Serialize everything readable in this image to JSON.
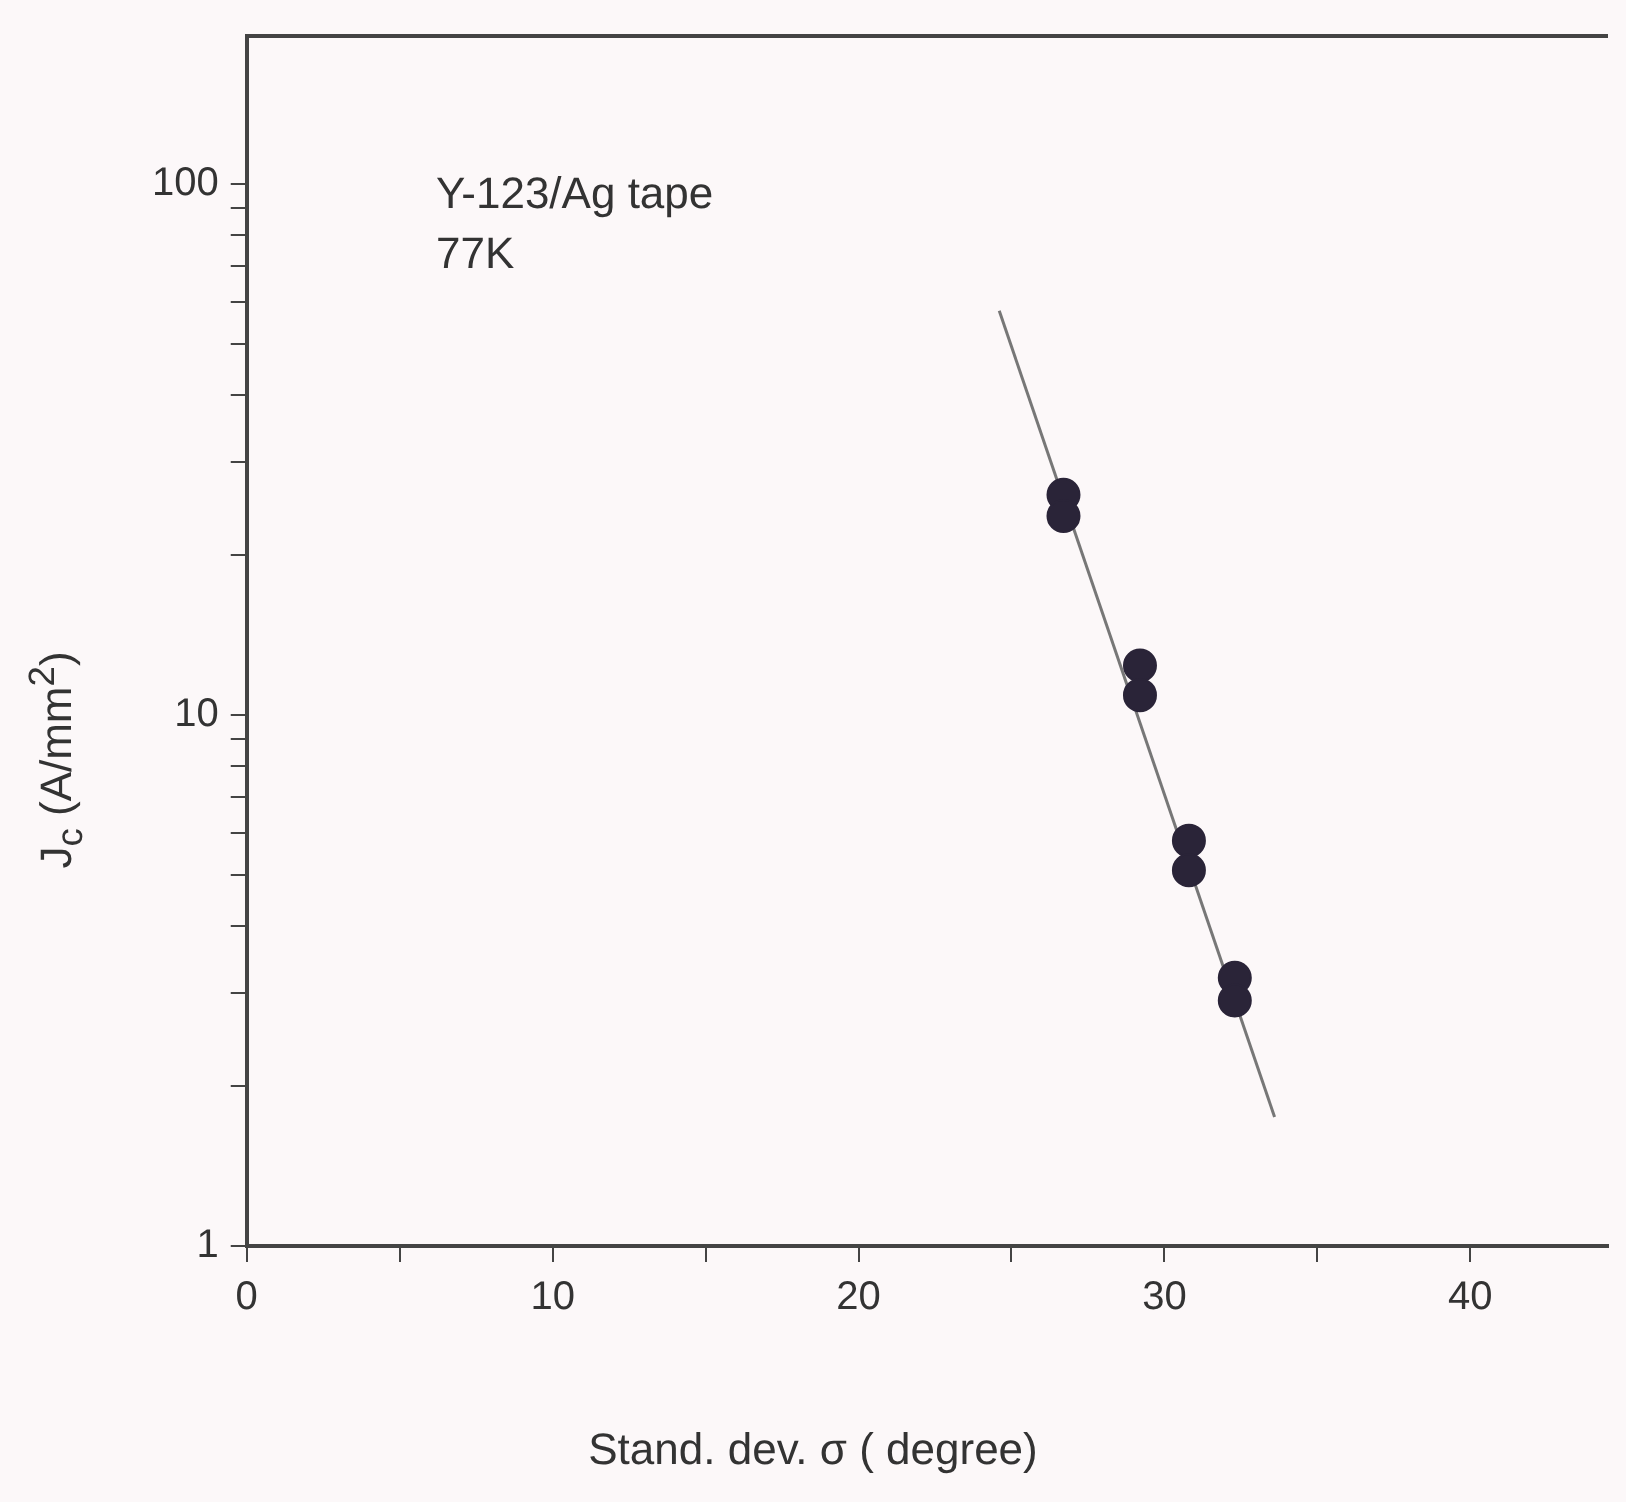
{
  "chart_data": {
    "type": "scatter",
    "xlabel": "Stand. dev. σ ( degree)",
    "ylabel": "J$_{c}$ (A/mm$^{2}$)",
    "annotations": [
      "Y-123/Ag tape",
      "77K"
    ],
    "log": "y",
    "grid": false,
    "marker": "circle",
    "legend": false,
    "xlim": [
      0,
      44.5
    ],
    "xticks": [
      0,
      {
        "value": 5,
        "label": null
      },
      10,
      {
        "value": 15,
        "label": null
      },
      20,
      {
        "value": 25,
        "label": null
      },
      30,
      {
        "value": 35,
        "label": null
      },
      40
    ],
    "ylim": [
      1,
      190
    ],
    "yticks": [
      1,
      {
        "value": 2,
        "label": null
      },
      {
        "value": 3,
        "label": null
      },
      {
        "value": 4,
        "label": null
      },
      {
        "value": 5,
        "label": null
      },
      {
        "value": 6,
        "label": null
      },
      {
        "value": 7,
        "label": null
      },
      {
        "value": 8,
        "label": null
      },
      {
        "value": 9,
        "label": null
      },
      10,
      {
        "value": 20,
        "label": null
      },
      {
        "value": 30,
        "label": null
      },
      {
        "value": 40,
        "label": null
      },
      {
        "value": 50,
        "label": null
      },
      {
        "value": 60,
        "label": null
      },
      {
        "value": 70,
        "label": null
      },
      {
        "value": 80,
        "label": null
      },
      {
        "value": 90,
        "label": null
      },
      100
    ],
    "series": [
      {
        "type": "scatter",
        "color": "#2a2438",
        "x": [
          26.7,
          26.7,
          29.2,
          29.2,
          30.8,
          30.8,
          32.3,
          32.3
        ],
        "values": [
          26,
          23.7,
          12.4,
          10.9,
          5.8,
          5.1,
          3.2,
          2.9
        ]
      },
      {
        "type": "line",
        "color": "#777777",
        "marker": "none",
        "x": [
          24.6,
          33.6
        ],
        "values": [
          57.7,
          1.75
        ]
      }
    ]
  }
}
